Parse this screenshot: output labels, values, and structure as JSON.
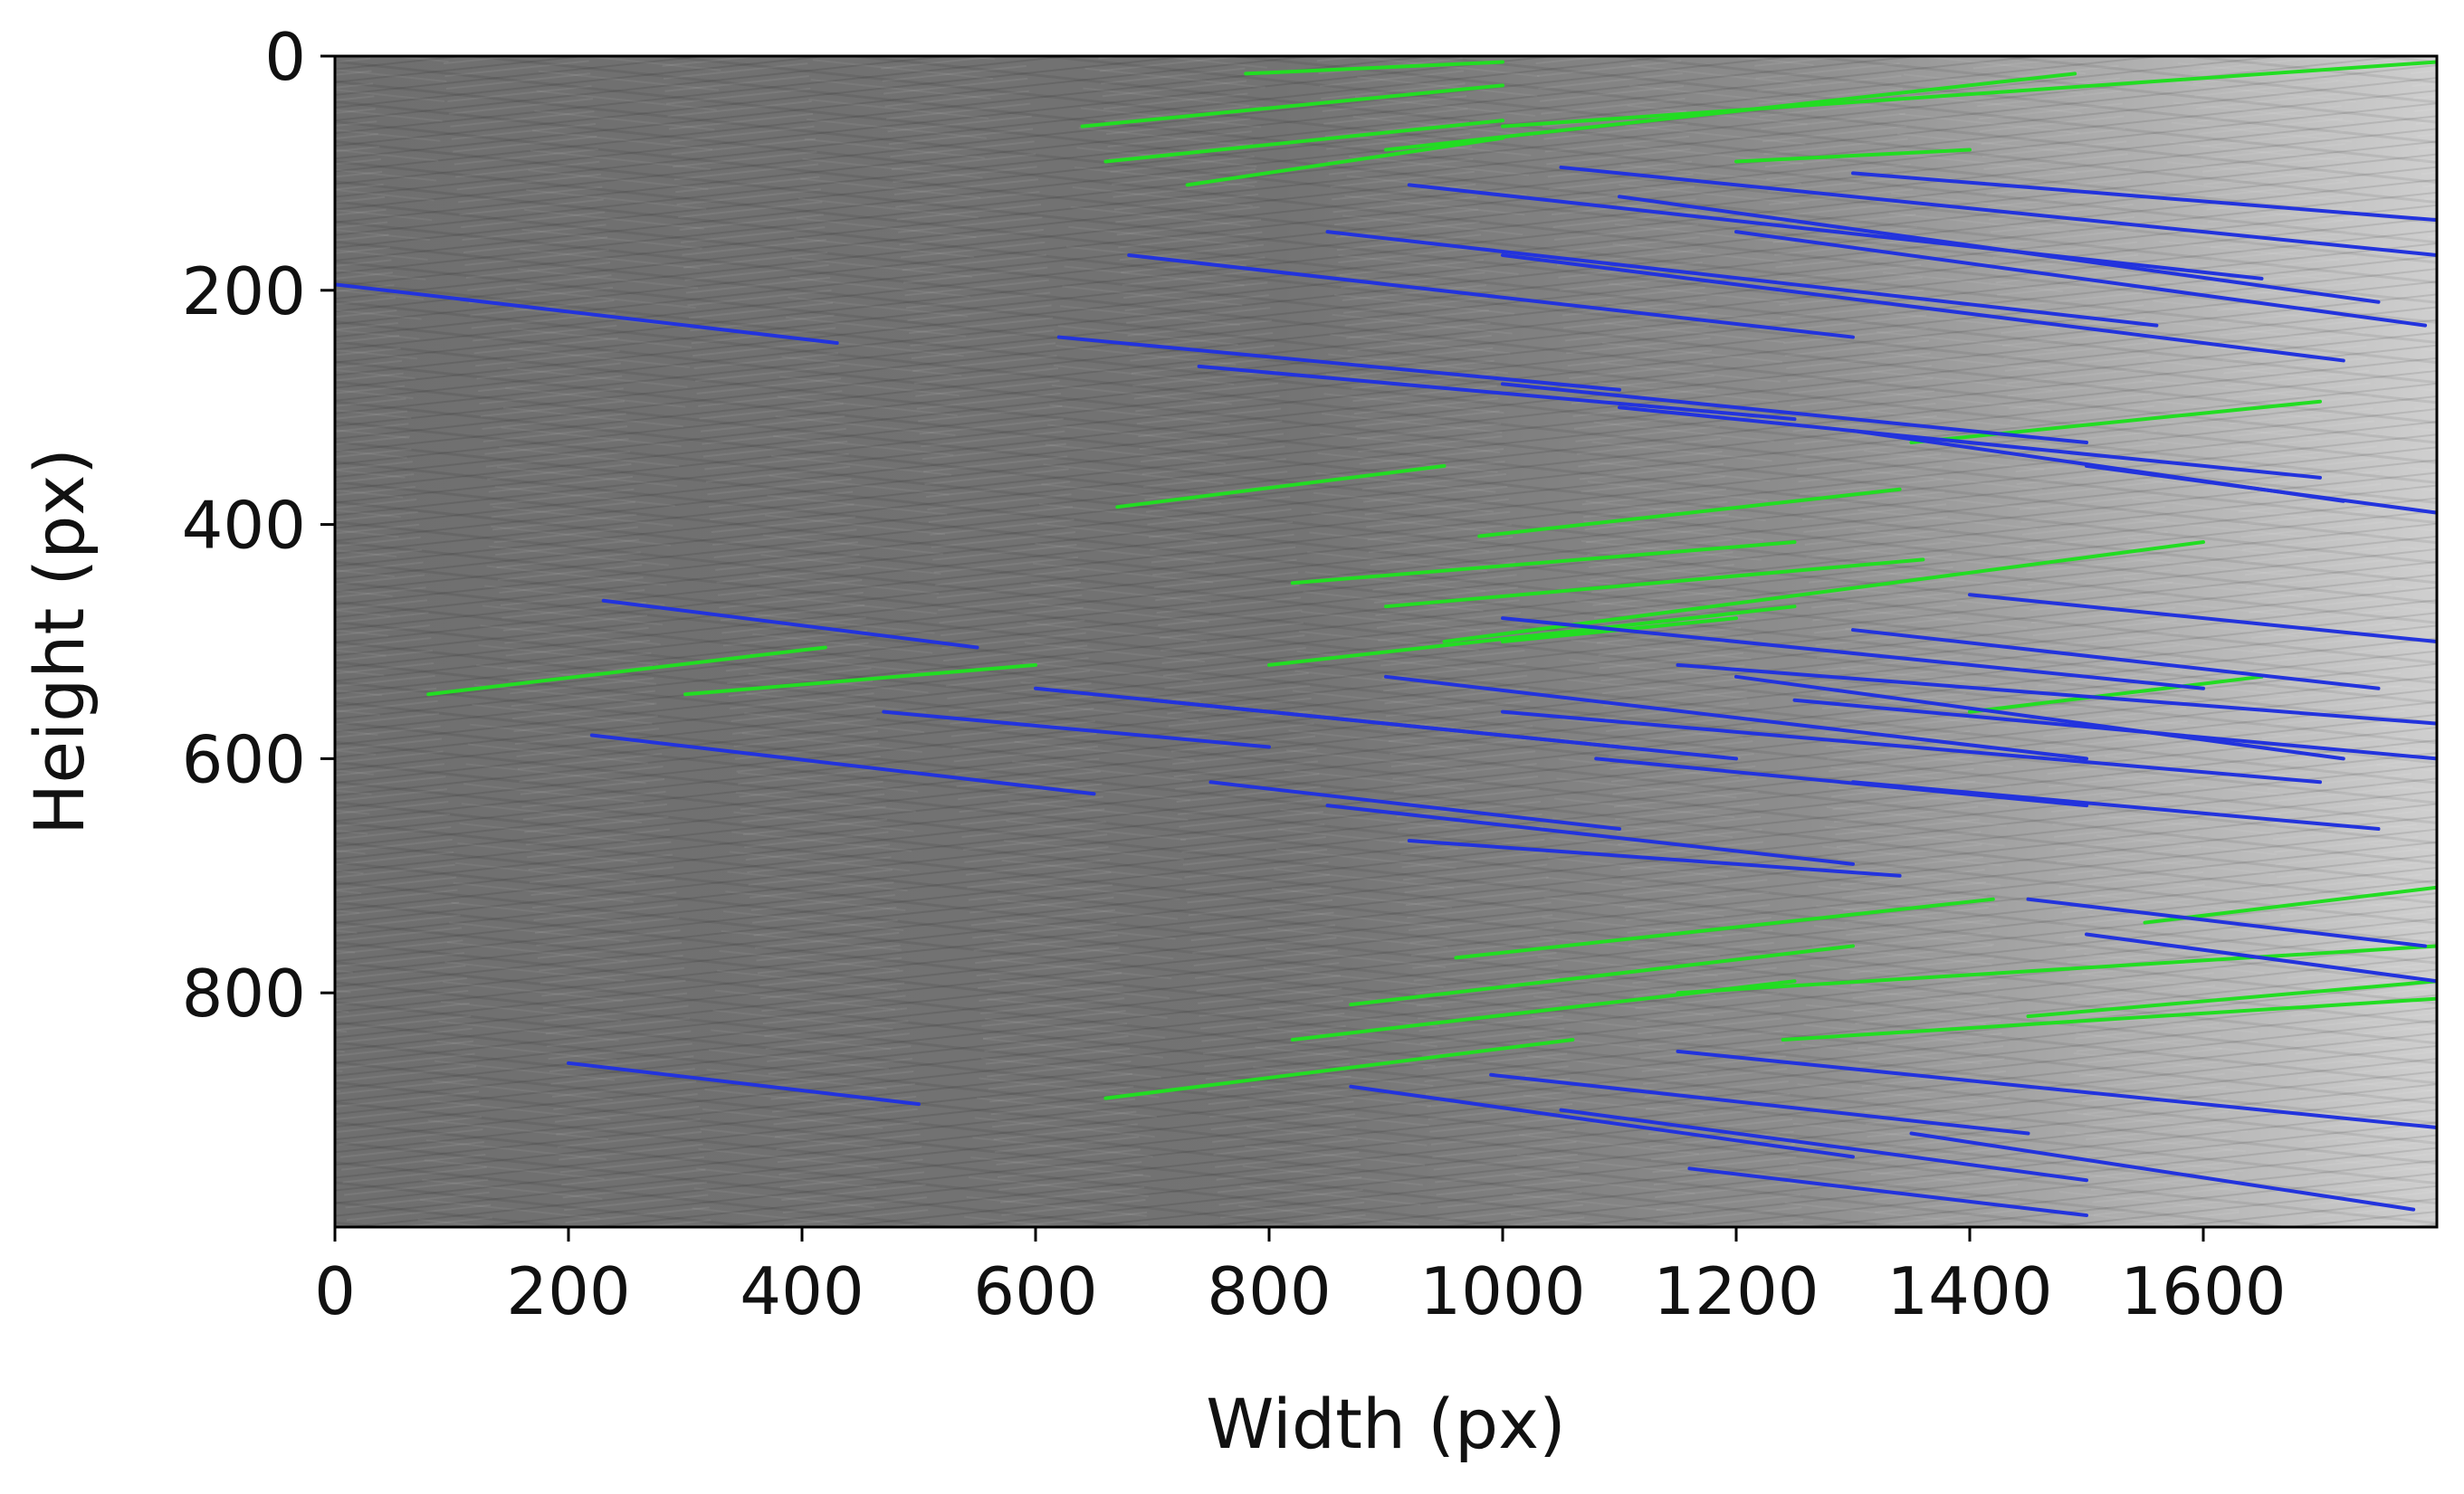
{
  "chart_data": {
    "type": "scatter",
    "title": "",
    "xlabel": "Width (px)",
    "ylabel": "Height (px)",
    "xlim": [
      0,
      1800
    ],
    "ylim": [
      1000,
      0
    ],
    "y_axis_inverted": true,
    "grid": false,
    "legend": "none",
    "background": "grayscale image with diagonal streak texture (brighter toward the right)",
    "xticks": [
      0,
      200,
      400,
      600,
      800,
      1000,
      1200,
      1400,
      1600
    ],
    "xtick_labels": [
      "0",
      "200",
      "400",
      "600",
      "800",
      "1000",
      "1200",
      "1400",
      "1600"
    ],
    "yticks": [
      0,
      200,
      400,
      600,
      800
    ],
    "ytick_labels": [
      "0",
      "200",
      "400",
      "600",
      "800"
    ],
    "series": [
      {
        "color": "#22dd22",
        "segments": [
          [
            [
              640,
              60
            ],
            [
              1000,
              25
            ]
          ],
          [
            [
              780,
              15
            ],
            [
              1000,
              5
            ]
          ],
          [
            [
              660,
              90
            ],
            [
              1000,
              55
            ]
          ],
          [
            [
              730,
              110
            ],
            [
              1000,
              70
            ]
          ],
          [
            [
              900,
              80
            ],
            [
              1490,
              15
            ]
          ],
          [
            [
              1000,
              60
            ],
            [
              1800,
              5
            ]
          ],
          [
            [
              1200,
              90
            ],
            [
              1400,
              80
            ]
          ],
          [
            [
              670,
              385
            ],
            [
              950,
              350
            ]
          ],
          [
            [
              980,
              410
            ],
            [
              1340,
              370
            ]
          ],
          [
            [
              820,
              450
            ],
            [
              1250,
              415
            ]
          ],
          [
            [
              900,
              470
            ],
            [
              1360,
              430
            ]
          ],
          [
            [
              950,
              500
            ],
            [
              1600,
              415
            ]
          ],
          [
            [
              800,
              520
            ],
            [
              1250,
              470
            ]
          ],
          [
            [
              1000,
              500
            ],
            [
              1200,
              480
            ]
          ],
          [
            [
              1350,
              330
            ],
            [
              1700,
              295
            ]
          ],
          [
            [
              80,
              545
            ],
            [
              420,
              505
            ]
          ],
          [
            [
              300,
              545
            ],
            [
              600,
              520
            ]
          ],
          [
            [
              1400,
              560
            ],
            [
              1650,
              530
            ]
          ],
          [
            [
              960,
              770
            ],
            [
              1420,
              720
            ]
          ],
          [
            [
              870,
              810
            ],
            [
              1300,
              760
            ]
          ],
          [
            [
              820,
              840
            ],
            [
              1250,
              790
            ]
          ],
          [
            [
              660,
              890
            ],
            [
              1060,
              840
            ]
          ],
          [
            [
              1150,
              800
            ],
            [
              1800,
              760
            ]
          ],
          [
            [
              1240,
              840
            ],
            [
              1800,
              805
            ]
          ],
          [
            [
              1450,
              820
            ],
            [
              1800,
              790
            ]
          ],
          [
            [
              1550,
              740
            ],
            [
              1800,
              710
            ]
          ]
        ]
      },
      {
        "color": "#2233dd",
        "segments": [
          [
            [
              0,
              195
            ],
            [
              430,
              245
            ]
          ],
          [
            [
              920,
              110
            ],
            [
              1650,
              190
            ]
          ],
          [
            [
              1050,
              95
            ],
            [
              1800,
              170
            ]
          ],
          [
            [
              1100,
              120
            ],
            [
              1750,
              210
            ]
          ],
          [
            [
              850,
              150
            ],
            [
              1560,
              230
            ]
          ],
          [
            [
              1000,
              170
            ],
            [
              1720,
              260
            ]
          ],
          [
            [
              1300,
              100
            ],
            [
              1800,
              140
            ]
          ],
          [
            [
              680,
              170
            ],
            [
              1300,
              240
            ]
          ],
          [
            [
              1200,
              150
            ],
            [
              1790,
              230
            ]
          ],
          [
            [
              620,
              240
            ],
            [
              1100,
              285
            ]
          ],
          [
            [
              740,
              265
            ],
            [
              1250,
              310
            ]
          ],
          [
            [
              1000,
              280
            ],
            [
              1500,
              330
            ]
          ],
          [
            [
              1100,
              300
            ],
            [
              1700,
              360
            ]
          ],
          [
            [
              1300,
              320
            ],
            [
              1720,
              380
            ]
          ],
          [
            [
              1500,
              350
            ],
            [
              1800,
              390
            ]
          ],
          [
            [
              230,
              465
            ],
            [
              550,
              505
            ]
          ],
          [
            [
              600,
              540
            ],
            [
              1100,
              590
            ]
          ],
          [
            [
              700,
              550
            ],
            [
              1200,
              600
            ]
          ],
          [
            [
              900,
              530
            ],
            [
              1500,
              600
            ]
          ],
          [
            [
              1000,
              560
            ],
            [
              1700,
              620
            ]
          ],
          [
            [
              1150,
              520
            ],
            [
              1800,
              570
            ]
          ],
          [
            [
              1300,
              490
            ],
            [
              1750,
              540
            ]
          ],
          [
            [
              1250,
              550
            ],
            [
              1800,
              600
            ]
          ],
          [
            [
              1400,
              460
            ],
            [
              1800,
              500
            ]
          ],
          [
            [
              1000,
              480
            ],
            [
              1600,
              540
            ]
          ],
          [
            [
              1200,
              530
            ],
            [
              1720,
              600
            ]
          ],
          [
            [
              220,
              580
            ],
            [
              650,
              630
            ]
          ],
          [
            [
              470,
              560
            ],
            [
              800,
              590
            ]
          ],
          [
            [
              750,
              620
            ],
            [
              1100,
              660
            ]
          ],
          [
            [
              850,
              640
            ],
            [
              1300,
              690
            ]
          ],
          [
            [
              920,
              670
            ],
            [
              1340,
              700
            ]
          ],
          [
            [
              1080,
              600
            ],
            [
              1500,
              640
            ]
          ],
          [
            [
              1300,
              620
            ],
            [
              1750,
              660
            ]
          ],
          [
            [
              200,
              860
            ],
            [
              500,
              895
            ]
          ],
          [
            [
              1450,
              720
            ],
            [
              1790,
              760
            ]
          ],
          [
            [
              1500,
              750
            ],
            [
              1800,
              790
            ]
          ],
          [
            [
              870,
              880
            ],
            [
              1300,
              940
            ]
          ],
          [
            [
              990,
              870
            ],
            [
              1450,
              920
            ]
          ],
          [
            [
              1150,
              850
            ],
            [
              1800,
              915
            ]
          ],
          [
            [
              1050,
              900
            ],
            [
              1500,
              960
            ]
          ],
          [
            [
              1160,
              950
            ],
            [
              1500,
              990
            ]
          ],
          [
            [
              1350,
              920
            ],
            [
              1780,
              985
            ]
          ]
        ]
      }
    ]
  }
}
